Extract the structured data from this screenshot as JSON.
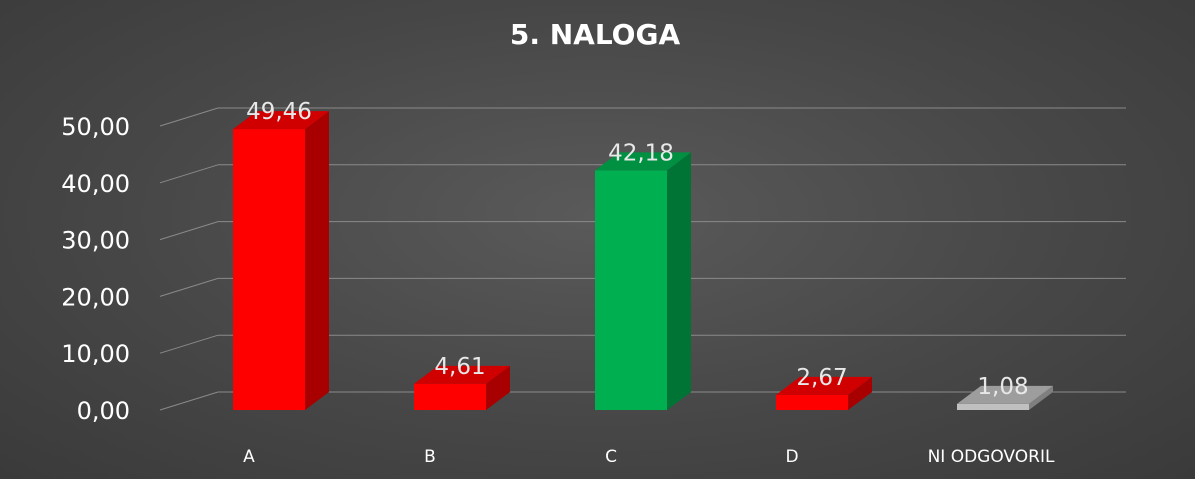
{
  "chart_data": {
    "type": "bar",
    "title": "5. NALOGA",
    "categories": [
      "A",
      "B",
      "C",
      "D",
      "NI ODGOVORIL"
    ],
    "values": [
      49.46,
      4.61,
      42.18,
      2.67,
      1.08
    ],
    "value_labels": [
      "49,46",
      "4,61",
      "42,18",
      "2,67",
      "1,08"
    ],
    "ylim": [
      0,
      50
    ],
    "yticks": [
      0,
      10,
      20,
      30,
      40,
      50
    ],
    "ytick_labels": [
      "0,00",
      "10,00",
      "20,00",
      "30,00",
      "40,00",
      "50,00"
    ],
    "xlabel": "",
    "ylabel": "",
    "grid": true,
    "style": "3d-column",
    "bar_colors": [
      "#ff0000",
      "#ff0000",
      "#00b050",
      "#ff0000",
      "#c0c0c0"
    ],
    "background": "#4a4a4a"
  }
}
